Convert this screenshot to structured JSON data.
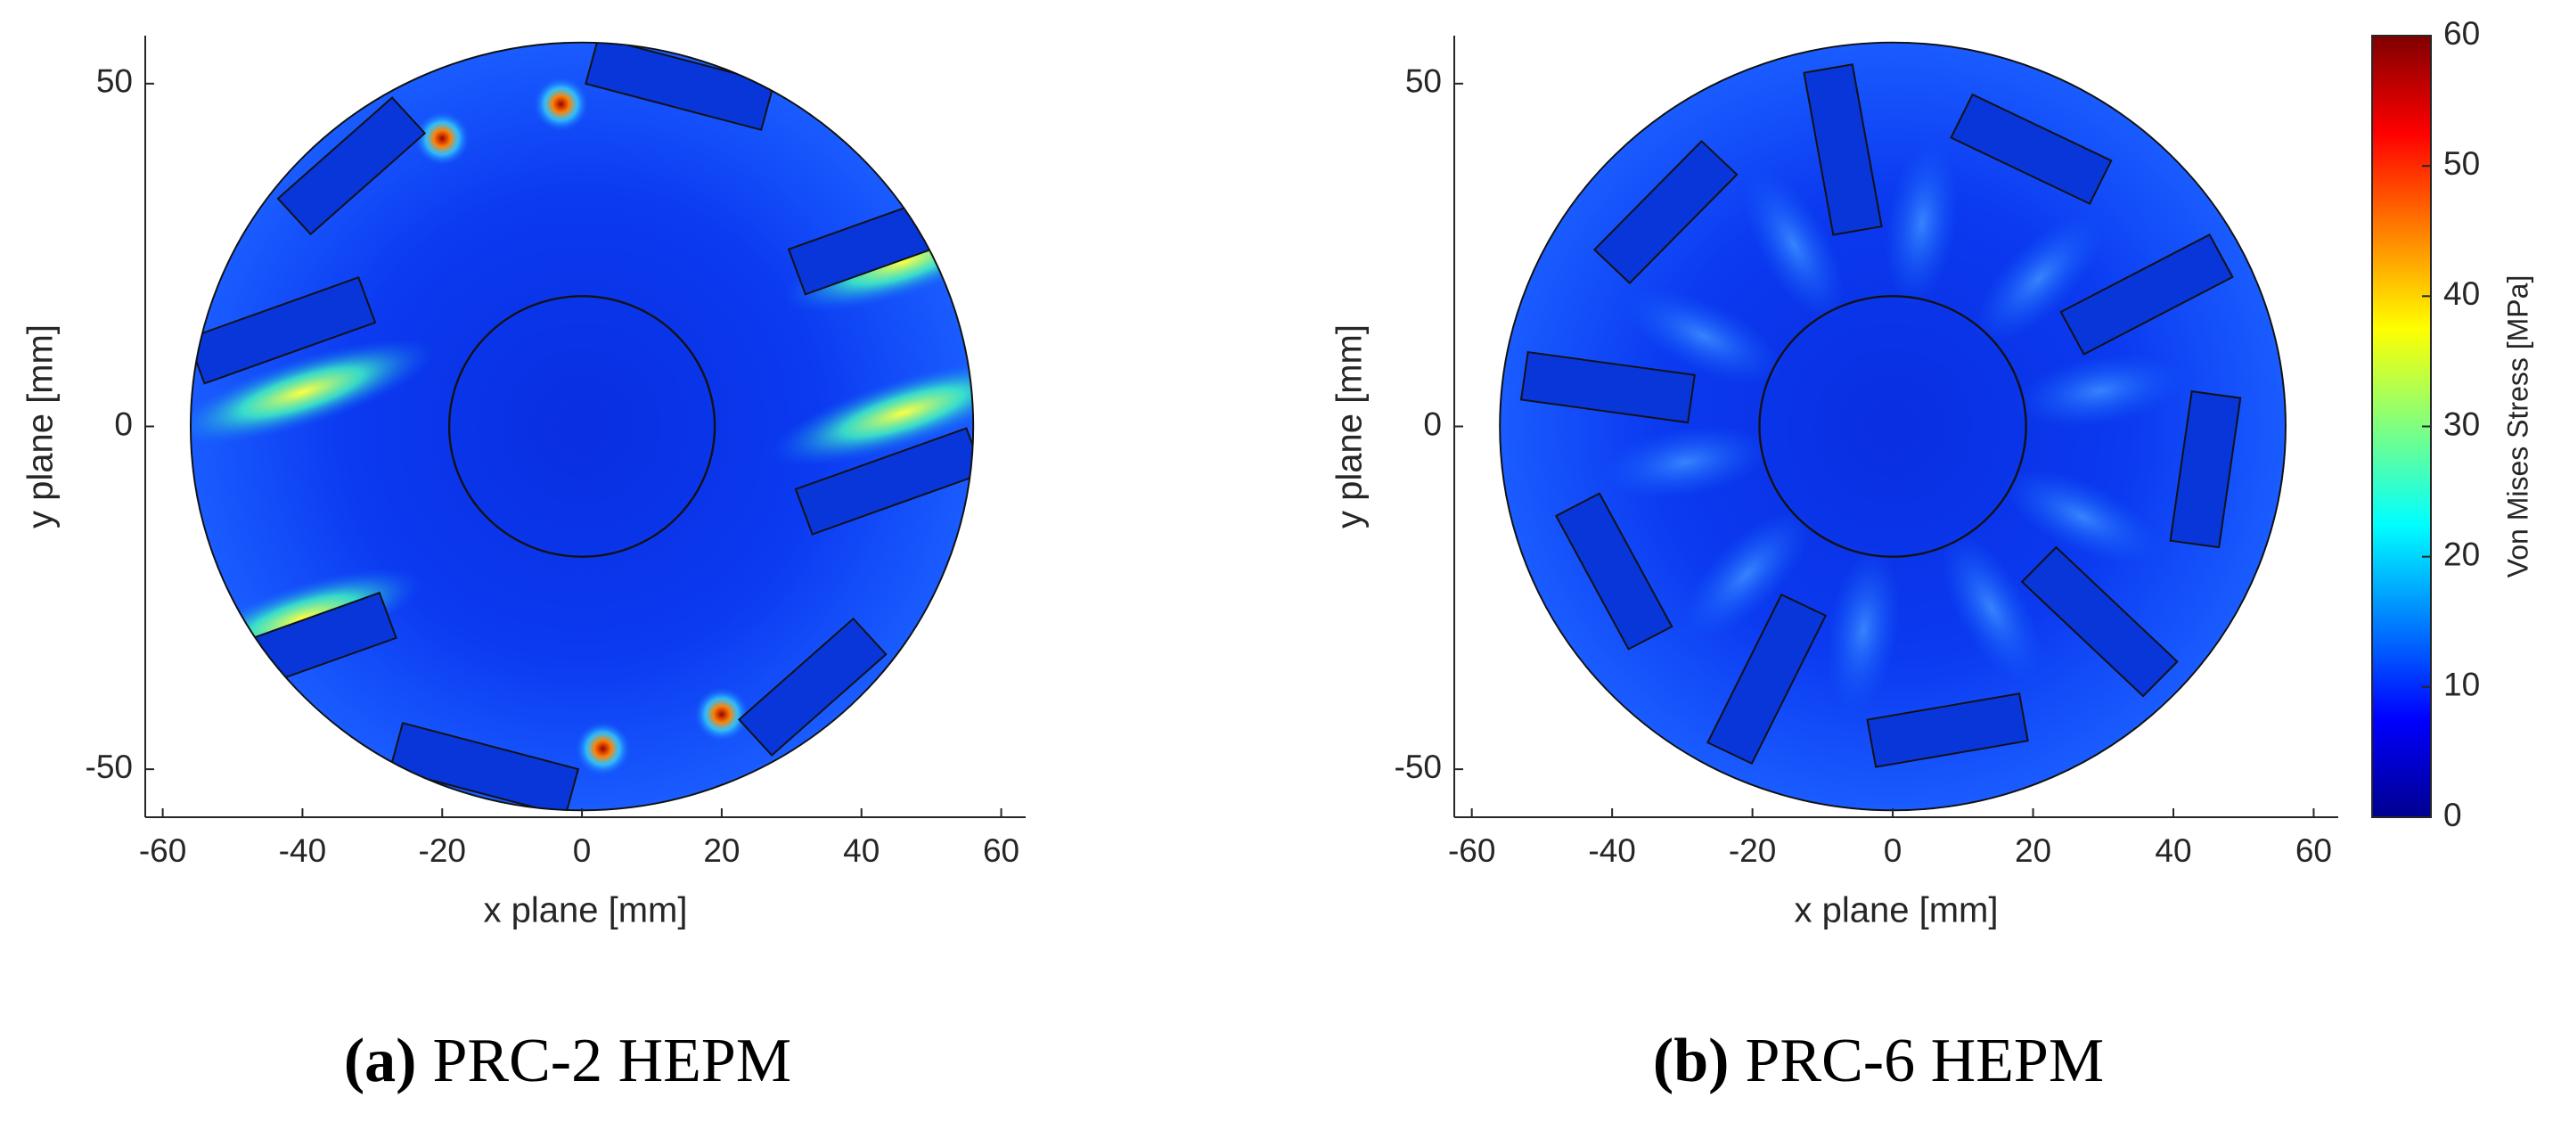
{
  "chart_data": [
    {
      "type": "contour",
      "xlabel": "x plane [mm]",
      "ylabel": "y plane [mm]",
      "xlim": [
        -62.5,
        63.5
      ],
      "ylim": [
        -57,
        57
      ],
      "xticks": [
        -60,
        -40,
        -20,
        0,
        20,
        40,
        60
      ],
      "yticks": [
        -50,
        0,
        50
      ],
      "caption_tag": "(a)",
      "caption": "PRC-2 HEPM",
      "rotor": "PRC-2"
    },
    {
      "type": "contour",
      "xlabel": "x plane [mm]",
      "ylabel": "y plane [mm]",
      "xlim": [
        -62.5,
        63.5
      ],
      "ylim": [
        -57,
        57
      ],
      "xticks": [
        -60,
        -40,
        -20,
        0,
        20,
        40,
        60
      ],
      "yticks": [
        -50,
        0,
        50
      ],
      "caption_tag": "(b)",
      "caption": "PRC-6 HEPM",
      "rotor": "PRC-6",
      "colorbar": {
        "label": "Von Mises Stress [MPa]",
        "clim": [
          0,
          60
        ],
        "ticks": [
          0,
          10,
          20,
          30,
          40,
          50,
          60
        ],
        "colormap": [
          "#00008f",
          "#0000ff",
          "#00ffff",
          "#ffff00",
          "#ff0000",
          "#800000"
        ]
      }
    }
  ]
}
